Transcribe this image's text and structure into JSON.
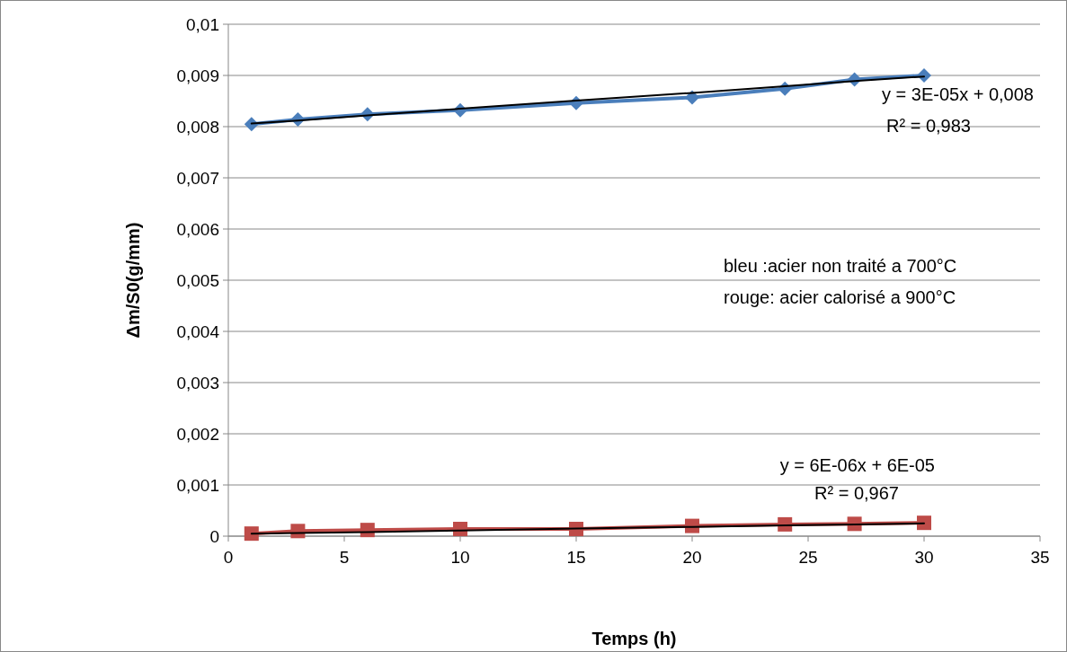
{
  "chart_data": {
    "type": "line",
    "xlabel": "Temps (h)",
    "ylabel": "Δm/S0(g/mm)",
    "x": [
      1,
      3,
      6,
      10,
      15,
      20,
      24,
      27,
      30
    ],
    "series": [
      {
        "color": "#4a7ebb",
        "marker": "diamond",
        "values": [
          0.00805,
          0.00814,
          0.00824,
          0.00832,
          0.00846,
          0.00857,
          0.00874,
          0.00892,
          0.009
        ]
      },
      {
        "color": "#be4b48",
        "marker": "square",
        "values": [
          5e-05,
          0.0001,
          0.00012,
          0.00014,
          0.00014,
          0.0002,
          0.00023,
          0.00024,
          0.00026
        ]
      },
      {
        "color": "#000000",
        "marker": "none",
        "values": [
          0.00806,
          0.00812,
          0.00822,
          0.00835,
          0.00851,
          0.00866,
          0.00879,
          0.00889,
          0.00898
        ]
      },
      {
        "color": "#000000",
        "marker": "none",
        "values": [
          5e-05,
          6e-05,
          8e-05,
          0.00011,
          0.00015,
          0.00018,
          0.00021,
          0.00023,
          0.00025
        ]
      }
    ],
    "xlim": [
      0,
      35
    ],
    "xticks": [
      0,
      5,
      10,
      15,
      20,
      25,
      30,
      35
    ],
    "ylim": [
      0,
      0.01
    ],
    "yticks": [
      0,
      {
        "value": 0.001,
        "label": "0,001"
      },
      {
        "value": 0.002,
        "label": "0,002"
      },
      {
        "value": 0.003,
        "label": "0,003"
      },
      {
        "value": 0.004,
        "label": "0,004"
      },
      {
        "value": 0.005,
        "label": "0,005"
      },
      {
        "value": 0.006,
        "label": "0,006"
      },
      {
        "value": 0.007,
        "label": "0,007"
      },
      {
        "value": 0.008,
        "label": "0,008"
      },
      {
        "value": 0.009,
        "label": "0,009"
      },
      {
        "value": 0.01,
        "label": "0,01"
      }
    ],
    "grid": "y",
    "annotations": [
      "y = 3E-05x + 0,008",
      "R² = 0,983",
      "bleu :acier non traité a 700°C",
      "rouge: acier calorisé a 900°C",
      "y = 6E-06x + 6E-05",
      "R² = 0,967"
    ]
  }
}
